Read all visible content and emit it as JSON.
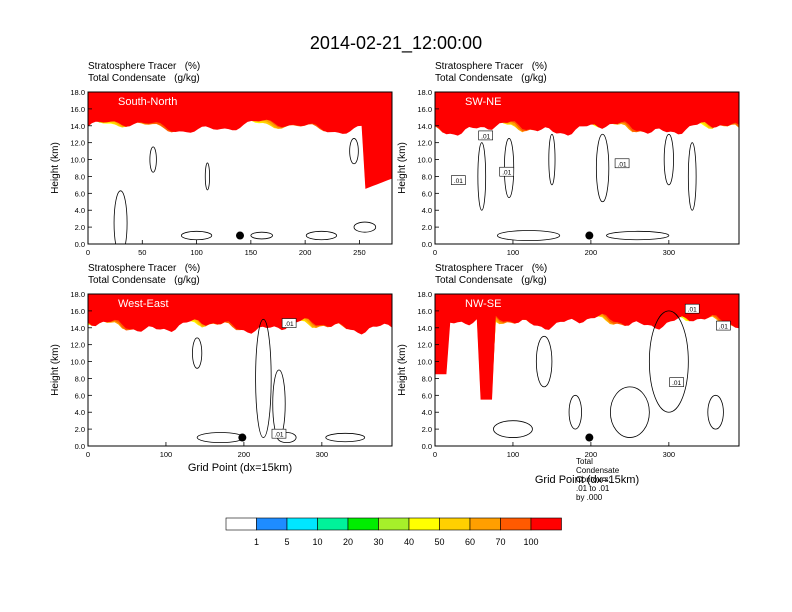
{
  "title": "2014-02-21_12:00:00",
  "panel_title_lines": [
    "Stratosphere Tracer   (%)",
    "Total Condensate   (g/kg)"
  ],
  "footnote": "Total Condensate Contours: .01 to .01 by .000",
  "x_axis_label": "Grid Point (dx=15km)",
  "colorbar": {
    "labels": [
      "1",
      "5",
      "10",
      "20",
      "30",
      "40",
      "50",
      "60",
      "70",
      "100"
    ],
    "colors": [
      "#ffffff",
      "#1e8cff",
      "#00e6ff",
      "#00f29a",
      "#00ee00",
      "#a6f02a",
      "#ffff00",
      "#ffd000",
      "#ff9f00",
      "#ff5a00",
      "#ff0000"
    ]
  },
  "chart_data": [
    {
      "type": "heatmap",
      "panel_label": "South-North",
      "xlim": [
        0,
        280
      ],
      "xticks": [
        0,
        50,
        100,
        150,
        200,
        250
      ],
      "ylim": [
        0,
        18
      ],
      "yticks": [
        "0.0",
        "2.0",
        "4.0",
        "6.0",
        "8.0",
        "10.0",
        "12.0",
        "14.0",
        "16.0",
        "18.0"
      ],
      "ylabel": "Height (km)",
      "tracer_base_km": 14.2,
      "marker_x": 140,
      "marker_y_km": 1.0,
      "contour_labels": []
    },
    {
      "type": "heatmap",
      "panel_label": "SW-NE",
      "xlim": [
        0,
        390
      ],
      "xticks": [
        0,
        100,
        200,
        300
      ],
      "ylim": [
        0,
        18
      ],
      "yticks": [
        "0.0",
        "2.0",
        "4.0",
        "6.0",
        "8.0",
        "10.0",
        "12.0",
        "14.0",
        "16.0",
        "18.0"
      ],
      "ylabel": "Height (km)",
      "tracer_base_km": 14.0,
      "marker_x": 198,
      "marker_y_km": 1.0,
      "contour_labels": [
        ".01",
        ".01",
        ".01",
        ".01"
      ]
    },
    {
      "type": "heatmap",
      "panel_label": "West-East",
      "xlim": [
        0,
        390
      ],
      "xticks": [
        0,
        100,
        200,
        300
      ],
      "ylim": [
        0,
        18
      ],
      "yticks": [
        "0.0",
        "2.0",
        "4.0",
        "6.0",
        "8.0",
        "10.0",
        "12.0",
        "14.0",
        "16.0",
        "18.0"
      ],
      "ylabel": "Height (km)",
      "tracer_base_km": 14.5,
      "marker_x": 198,
      "marker_y_km": 1.0,
      "contour_labels": [
        ".01",
        ".01"
      ]
    },
    {
      "type": "heatmap",
      "panel_label": "NW-SE",
      "xlim": [
        0,
        390
      ],
      "xticks": [
        0,
        100,
        200,
        300
      ],
      "ylim": [
        0,
        18
      ],
      "yticks": [
        "0.0",
        "2.0",
        "4.0",
        "6.0",
        "8.0",
        "10.0",
        "12.0",
        "14.0",
        "16.0",
        "18.0"
      ],
      "ylabel": "Height (km)",
      "tracer_base_km": 15.0,
      "marker_x": 198,
      "marker_y_km": 1.0,
      "contour_labels": [
        ".01",
        ".01",
        ".01"
      ]
    }
  ]
}
